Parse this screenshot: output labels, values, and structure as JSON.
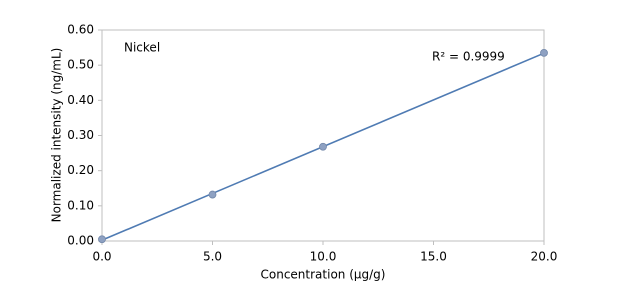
{
  "chart_data": {
    "type": "scatter",
    "xlabel": "Concentration (µg/g)",
    "ylabel": "Normalized intensity (ng/mL)",
    "annotations": [
      "Nickel",
      "R² = 0.9999"
    ],
    "series": [
      {
        "name": "Nickel",
        "color": "#8ea1c2",
        "line_color": "#4f7bb3",
        "x": [
          0,
          5,
          10,
          20
        ],
        "values": [
          0.005,
          0.132,
          0.268,
          0.535
        ]
      }
    ],
    "trendline": true,
    "xlim": [
      0,
      20
    ],
    "xticks": [
      {
        "value": 0,
        "label": "0.0"
      },
      {
        "value": 5,
        "label": "5.0"
      },
      {
        "value": 10,
        "label": "10.0"
      },
      {
        "value": 15,
        "label": "15.0"
      },
      {
        "value": 20,
        "label": "20.0"
      }
    ],
    "ylim": [
      0,
      0.6
    ],
    "yticks": [
      {
        "value": 0,
        "label": "0.00"
      },
      {
        "value": 0.1,
        "label": "0.10"
      },
      {
        "value": 0.2,
        "label": "0.20"
      },
      {
        "value": 0.3,
        "label": "0.30"
      },
      {
        "value": 0.4,
        "label": "0.40"
      },
      {
        "value": 0.5,
        "label": "0.50"
      },
      {
        "value": 0.6,
        "label": "0.60"
      }
    ]
  }
}
